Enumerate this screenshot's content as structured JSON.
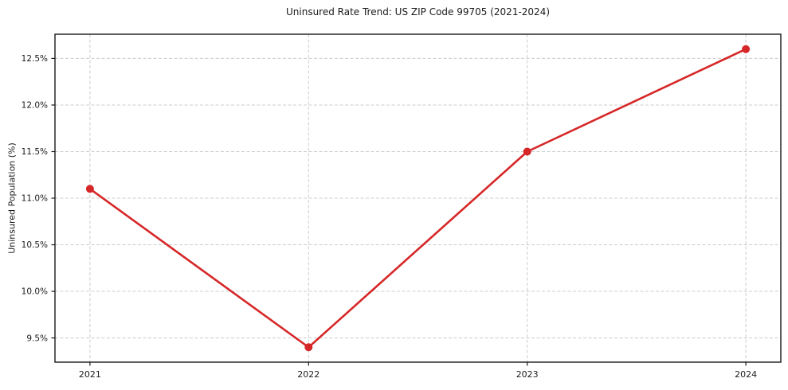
{
  "chart_data": {
    "type": "line",
    "title": "Uninsured Rate Trend: US ZIP Code 99705 (2021-2024)",
    "xlabel": "",
    "ylabel": "Uninsured Population (%)",
    "x": [
      2021,
      2022,
      2023,
      2024
    ],
    "values": [
      11.1,
      9.4,
      11.5,
      12.6
    ],
    "x_tick_labels": [
      "2021",
      "2022",
      "2023",
      "2024"
    ],
    "y_ticks": [
      9.5,
      10.0,
      10.5,
      11.0,
      11.5,
      12.0,
      12.5
    ],
    "y_tick_labels": [
      "9.5%",
      "10.0%",
      "10.5%",
      "11.0%",
      "11.5%",
      "12.0%",
      "12.5%"
    ],
    "xlim": [
      2020.84,
      2024.16
    ],
    "ylim": [
      9.24,
      12.76
    ],
    "grid": true,
    "legend": "none",
    "line_color": "#d62728",
    "marker": "circle",
    "grid_color": "#cccccc",
    "axis_color": "#1a1a1a"
  }
}
